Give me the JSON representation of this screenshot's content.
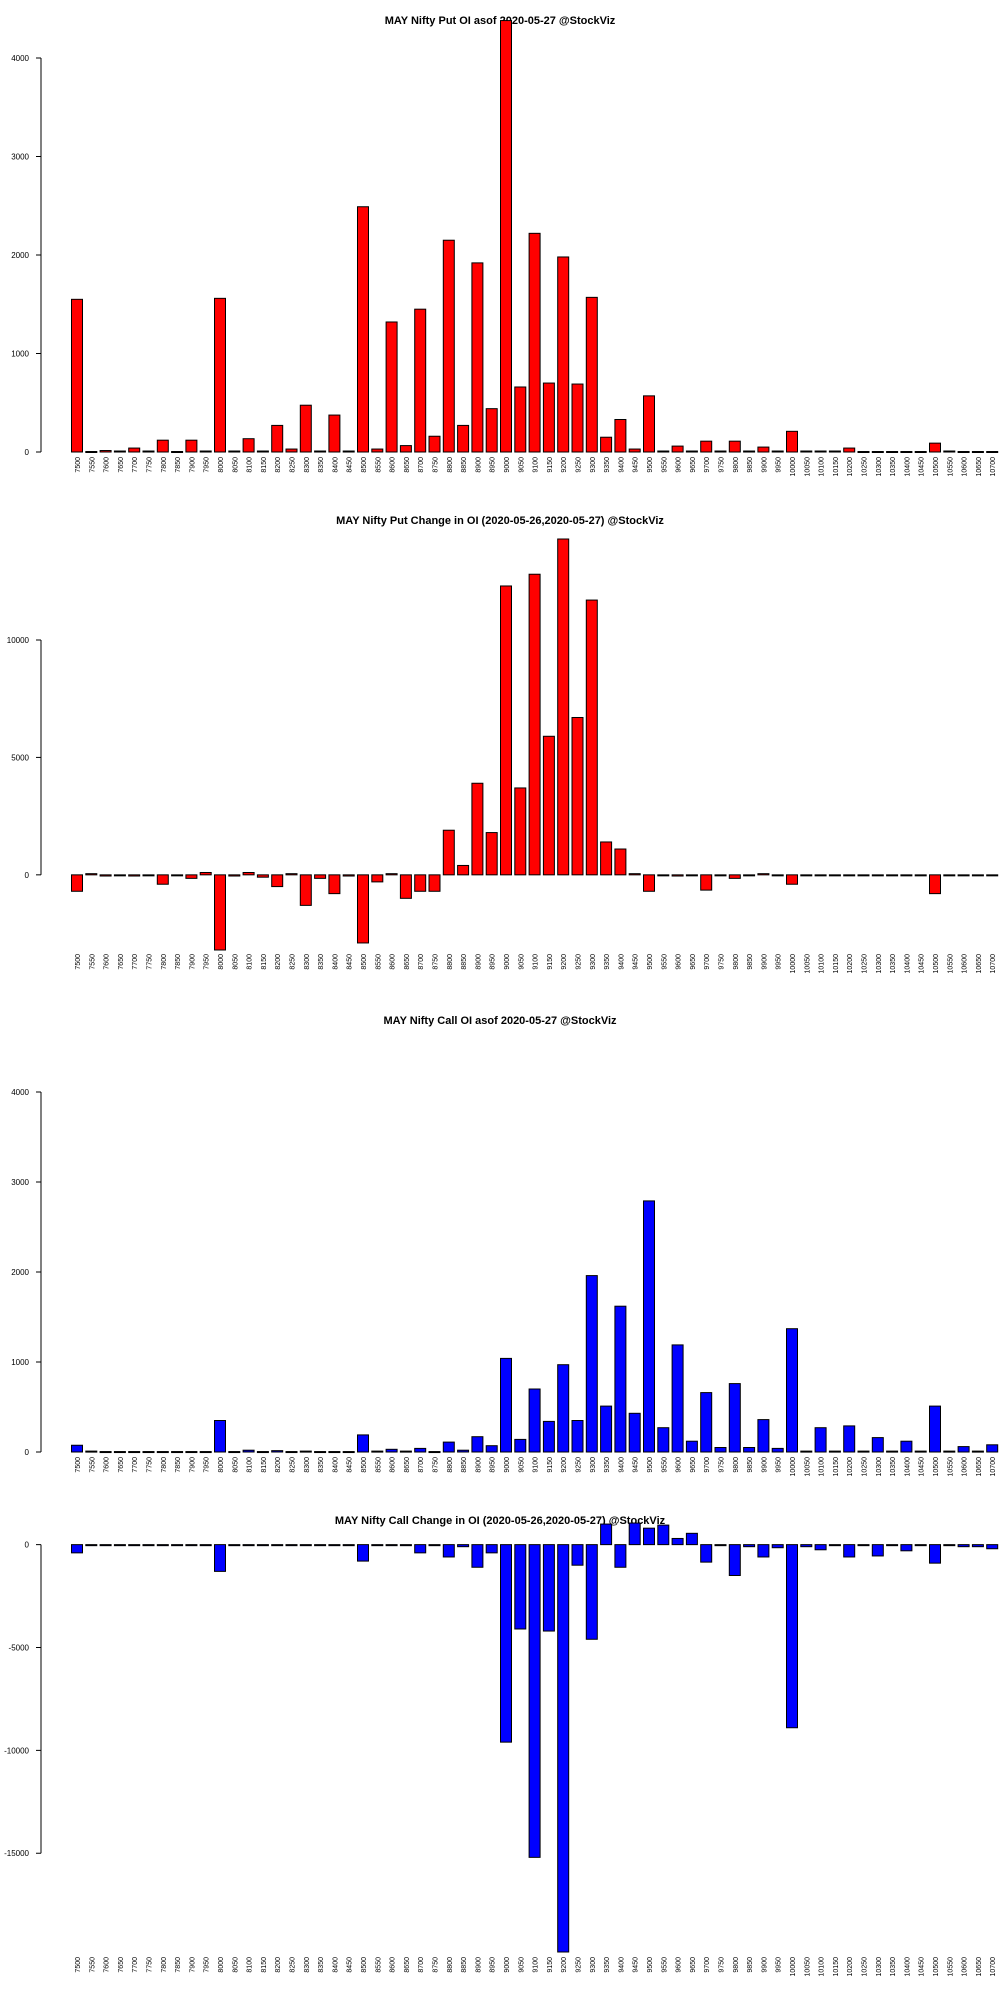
{
  "colors": {
    "put": "#ff0000",
    "call": "#0000ff",
    "axis": "#000000"
  },
  "strikes": [
    "7500",
    "7550",
    "7600",
    "7650",
    "7700",
    "7750",
    "7800",
    "7850",
    "7900",
    "7950",
    "8000",
    "8050",
    "8100",
    "8150",
    "8200",
    "8250",
    "8300",
    "8350",
    "8400",
    "8450",
    "8500",
    "8550",
    "8600",
    "8650",
    "8700",
    "8750",
    "8800",
    "8850",
    "8900",
    "8950",
    "9000",
    "9050",
    "9100",
    "9150",
    "9200",
    "9250",
    "9300",
    "9350",
    "9400",
    "9450",
    "9500",
    "9550",
    "9600",
    "9650",
    "9700",
    "9750",
    "9800",
    "9850",
    "9900",
    "9950",
    "10000",
    "10050",
    "10100",
    "10150",
    "10200",
    "10250",
    "10300",
    "10350",
    "10400",
    "10450",
    "10500",
    "10550",
    "10600",
    "10650",
    "10700"
  ],
  "chart_data": [
    {
      "type": "bar",
      "title": "MAY Nifty Put OI asof 2020-05-27 @StockViz",
      "xlabel": "",
      "ylabel": "",
      "ylim": [
        0,
        4000
      ],
      "yticks": [
        0,
        1000,
        2000,
        3000,
        4000
      ],
      "color": "#ff0000",
      "values": [
        1550,
        5,
        15,
        10,
        40,
        10,
        120,
        5,
        120,
        10,
        1560,
        10,
        135,
        10,
        270,
        30,
        475,
        10,
        375,
        10,
        2490,
        30,
        1320,
        65,
        1450,
        160,
        2150,
        270,
        1920,
        440,
        4380,
        660,
        2220,
        700,
        1980,
        690,
        1570,
        150,
        330,
        30,
        570,
        10,
        60,
        10,
        110,
        10,
        110,
        10,
        50,
        10,
        210,
        10,
        10,
        10,
        40,
        5,
        5,
        5,
        5,
        5,
        90,
        10,
        5,
        5,
        5
      ]
    },
    {
      "type": "bar",
      "title": "MAY Nifty Put Change in OI (2020-05-26,2020-05-27) @StockViz",
      "xlabel": "",
      "ylabel": "",
      "ylim": [
        -3200,
        14300
      ],
      "yticks": [
        0,
        5000,
        10000
      ],
      "color": "#ff0000",
      "values": [
        -700,
        50,
        -50,
        -30,
        -50,
        -30,
        -400,
        0,
        -150,
        100,
        -3200,
        -50,
        100,
        -100,
        -500,
        50,
        -1300,
        -150,
        -800,
        -50,
        -2900,
        -300,
        50,
        -1000,
        -700,
        -700,
        1900,
        400,
        3900,
        1800,
        12300,
        3700,
        12800,
        5900,
        14300,
        6700,
        11700,
        1400,
        1100,
        50,
        -700,
        -30,
        -50,
        -30,
        -650,
        0,
        -150,
        0,
        50,
        0,
        -400,
        0,
        0,
        0,
        0,
        0,
        0,
        0,
        0,
        0,
        -800,
        0,
        0,
        0,
        0
      ]
    },
    {
      "type": "bar",
      "title": "MAY Nifty Call OI asof 2020-05-27 @StockViz",
      "xlabel": "",
      "ylabel": "",
      "ylim": [
        0,
        4000
      ],
      "yticks": [
        0,
        1000,
        2000,
        3000,
        4000
      ],
      "color": "#0000ff",
      "values": [
        75,
        10,
        5,
        5,
        5,
        5,
        5,
        5,
        5,
        5,
        350,
        5,
        20,
        5,
        15,
        5,
        10,
        5,
        5,
        5,
        190,
        10,
        30,
        10,
        40,
        5,
        110,
        20,
        170,
        70,
        1040,
        140,
        700,
        340,
        970,
        350,
        1960,
        510,
        1620,
        430,
        2790,
        270,
        1190,
        120,
        660,
        50,
        760,
        50,
        360,
        40,
        1370,
        10,
        270,
        10,
        290,
        10,
        160,
        10,
        120,
        10,
        510,
        10,
        60,
        10,
        80
      ]
    },
    {
      "type": "bar",
      "title": "MAY Nifty Call Change in OI (2020-05-26,2020-05-27) @StockViz",
      "xlabel": "",
      "ylabel": "",
      "ylim": [
        -19800,
        1100
      ],
      "yticks": [
        0,
        -5000,
        -10000,
        -15000
      ],
      "color": "#0000ff",
      "values": [
        -400,
        -50,
        -50,
        -50,
        -50,
        -50,
        -50,
        -50,
        -50,
        -50,
        -1300,
        -50,
        -50,
        -50,
        -50,
        -50,
        -50,
        -50,
        -50,
        -50,
        -800,
        -50,
        -50,
        -50,
        -400,
        -50,
        -600,
        -100,
        -1100,
        -400,
        -9600,
        -4100,
        -15200,
        -4200,
        -19800,
        -1000,
        -4600,
        1000,
        -1100,
        1050,
        800,
        950,
        300,
        550,
        -850,
        -50,
        -1500,
        -100,
        -600,
        -150,
        -8900,
        -100,
        -250,
        -50,
        -600,
        -50,
        -550,
        -50,
        -300,
        -50,
        -900,
        -50,
        -100,
        -100,
        -200
      ]
    }
  ]
}
